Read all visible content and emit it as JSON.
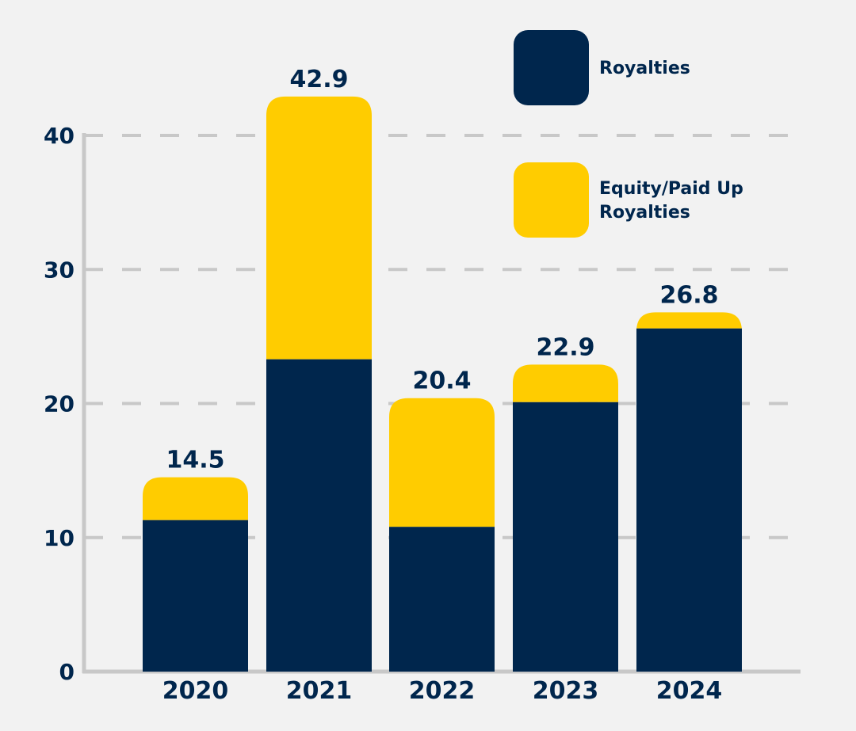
{
  "chart_data": {
    "type": "bar",
    "stacked": true,
    "title": "",
    "xlabel": "",
    "ylabel": "",
    "ylim": [
      0,
      40
    ],
    "yticks": [
      0,
      10,
      20,
      30,
      40
    ],
    "grid": true,
    "legend_position": "top-right",
    "categories": [
      "2020",
      "2021",
      "2022",
      "2023",
      "2024"
    ],
    "series": [
      {
        "name": "Royalties",
        "color": "#00264d",
        "values": [
          11.3,
          23.3,
          10.8,
          20.1,
          25.6
        ]
      },
      {
        "name": "Equity/Paid Up Royalties",
        "color": "#ffcc00",
        "values": [
          3.2,
          19.6,
          9.6,
          2.8,
          1.2
        ]
      }
    ],
    "totals": [
      "14.5",
      "42.9",
      "20.4",
      "22.9",
      "26.8"
    ],
    "legend": [
      {
        "label_lines": [
          "Royalties"
        ],
        "color": "#00264d"
      },
      {
        "label_lines": [
          "Equity/Paid Up",
          "Royalties"
        ],
        "color": "#ffcc00"
      }
    ]
  }
}
